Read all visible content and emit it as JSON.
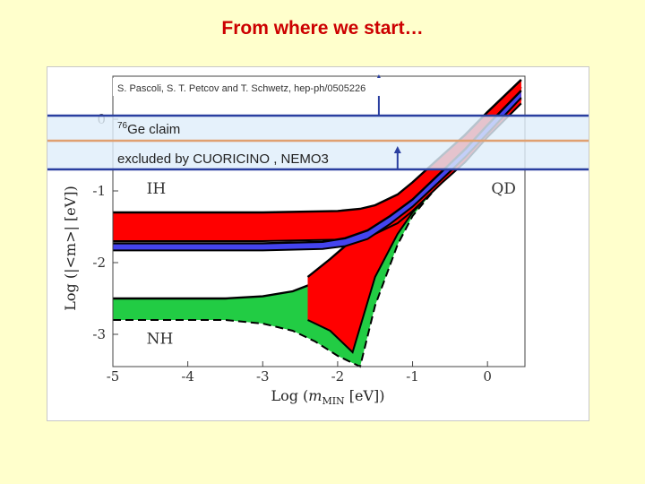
{
  "slide": {
    "title": "From where we start…"
  },
  "citation": "S. Pascoli, S. T. Petcov and T. Schwetz, hep-ph/0505226",
  "annotations": {
    "ge_claim_sup": "76",
    "ge_claim_text": "Ge claim",
    "excluded": "excluded by CUORICINO , NEMO3"
  },
  "colors": {
    "title": "#cc0000",
    "ih_band": "#ff0000",
    "ih_lower_band": "#4444ee",
    "nh_band": "#22cc44",
    "excluded_band": "#dfeefa",
    "excluded_border": "#2a3fa0",
    "claim_line": "#e0a070"
  },
  "chart_data": {
    "type": "area",
    "xlabel_prefix": "Log (",
    "xlabel_var": "m",
    "xlabel_sub": "MIN",
    "xlabel_suffix": " [eV])",
    "ylabel": "Log (|<m>| [eV])",
    "xlim": [
      -5,
      0.5
    ],
    "ylim": [
      -3.45,
      0.6
    ],
    "x_ticks": [
      {
        "v": -5,
        "label": "-5"
      },
      {
        "v": -4,
        "label": "-4"
      },
      {
        "v": -3,
        "label": "-3"
      },
      {
        "v": -2,
        "label": "-2"
      },
      {
        "v": -1,
        "label": "-1"
      },
      {
        "v": 0,
        "label": "0"
      }
    ],
    "y_ticks": [
      {
        "v": 0,
        "label": "0"
      },
      {
        "v": -1,
        "label": "-1"
      },
      {
        "v": -2,
        "label": "-2"
      },
      {
        "v": -3,
        "label": "-3"
      }
    ],
    "region_labels": [
      {
        "text": "IH",
        "x": -4.55,
        "y": -1.04
      },
      {
        "text": "QD",
        "x": 0.05,
        "y": -1.04
      },
      {
        "text": "NH",
        "x": -4.55,
        "y": -3.13
      }
    ],
    "excluded_band_y": [
      -0.7,
      0.05
    ],
    "ge_claim_y": -0.3,
    "arrow_x": [
      -1.45,
      -1.2
    ],
    "series": [
      {
        "id": "ih-upper",
        "x": [
          -5,
          -3,
          -2,
          -1.7,
          -1.5,
          -1.2,
          -1,
          -0.6,
          -0.3,
          0,
          0.45
        ],
        "upper": [
          -1.3,
          -1.3,
          -1.28,
          -1.25,
          -1.2,
          -1.05,
          -0.88,
          -0.5,
          -0.22,
          0.1,
          0.55
        ],
        "lower": [
          -1.7,
          -1.7,
          -1.68,
          -1.65,
          -1.6,
          -1.45,
          -1.28,
          -0.88,
          -0.6,
          -0.25,
          0.22
        ]
      },
      {
        "id": "ih-lower",
        "x": [
          -5,
          -3,
          -2.2,
          -1.9,
          -1.6,
          -1.3,
          -1,
          -0.6,
          -0.3,
          0,
          0.45
        ],
        "upper": [
          -1.73,
          -1.73,
          -1.71,
          -1.66,
          -1.55,
          -1.35,
          -1.12,
          -0.72,
          -0.42,
          -0.08,
          0.4
        ],
        "lower": [
          -1.83,
          -1.83,
          -1.81,
          -1.77,
          -1.67,
          -1.46,
          -1.22,
          -0.83,
          -0.53,
          -0.2,
          0.3
        ]
      },
      {
        "id": "nh-max",
        "x": [
          -5,
          -3.5,
          -3,
          -2.6,
          -2.3,
          -2,
          -1.7,
          -1.5,
          -1.2,
          -1,
          -0.6,
          -0.3,
          0,
          0.45
        ],
        "upper": [
          -2.5,
          -2.5,
          -2.47,
          -2.4,
          -2.28,
          -2.05,
          -1.76,
          -1.56,
          -1.25,
          -1.04,
          -0.65,
          -0.35,
          -0.02,
          0.45
        ],
        "lower": [
          -2.8,
          -2.8,
          -2.85,
          -2.95,
          -3.1,
          -3.3,
          -3.45,
          -2.6,
          -1.75,
          -1.35,
          -0.85,
          -0.55,
          -0.2,
          0.3
        ]
      },
      {
        "id": "ih-red-extension",
        "x": [
          -2.4,
          -2.1,
          -1.8,
          -1.5,
          -1.2,
          -1,
          -0.6,
          -0.3,
          0,
          0.45
        ],
        "upper": [
          -2.2,
          -1.95,
          -1.68,
          -1.4,
          -1.12,
          -0.92,
          -0.52,
          -0.22,
          0.1,
          0.55
        ],
        "lower": [
          -2.8,
          -2.95,
          -3.25,
          -2.2,
          -1.6,
          -1.3,
          -0.85,
          -0.55,
          -0.22,
          0.28
        ]
      }
    ]
  }
}
